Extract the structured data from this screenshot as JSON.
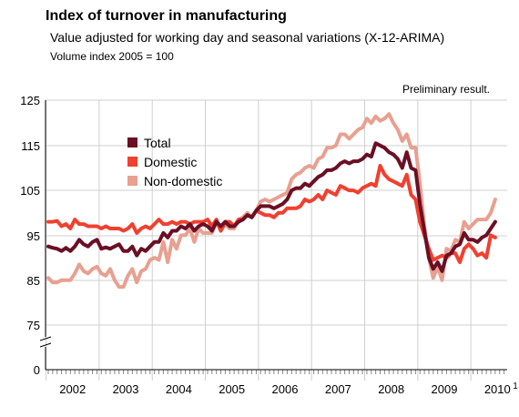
{
  "title": "Index of turnover in manufacturing",
  "subtitle": "Value adjusted for working day and seasonal variations (X-12-ARIMA)",
  "note": "Volume index 2005 = 100",
  "annotation": "Preliminary result.",
  "footnote_mark": "1",
  "chart_data": {
    "type": "line",
    "title": "Index of turnover in manufacturing",
    "ylim": [
      0,
      125
    ],
    "y_axis_break": [
      0,
      75
    ],
    "y_ticks": [
      0,
      75,
      85,
      95,
      105,
      115,
      125
    ],
    "y_tick_labels": [
      "0",
      "75",
      "85",
      "95",
      "105",
      "115",
      "125"
    ],
    "x_start": "2002-01",
    "x_end": "2010-05",
    "frequency": "monthly",
    "x_tick_labels": [
      "2002",
      "2003",
      "2004",
      "2005",
      "2006",
      "2007",
      "2008",
      "2009",
      "2010"
    ],
    "grid": true,
    "legend_position": "upper-left",
    "series": [
      {
        "name": "Total",
        "color": "#6b0f24",
        "values": [
          92.5,
          92.2,
          92.0,
          91.5,
          92.2,
          91.5,
          92.5,
          94.0,
          93.0,
          92.5,
          93.5,
          94.0,
          92.0,
          92.3,
          92.0,
          92.5,
          93.0,
          91.5,
          91.5,
          92.5,
          90.5,
          92.0,
          91.5,
          92.5,
          93.5,
          93.5,
          95.5,
          94.5,
          96.0,
          96.0,
          97.0,
          96.5,
          97.5,
          96.0,
          97.0,
          97.5,
          97.0,
          96.0,
          98.0,
          97.0,
          98.0,
          97.0,
          97.0,
          98.0,
          98.5,
          99.5,
          99.0,
          100.5,
          101.5,
          101.5,
          101.5,
          101.0,
          101.5,
          102.0,
          103.0,
          105.0,
          105.5,
          105.5,
          106.5,
          106.0,
          107.0,
          108.0,
          108.5,
          109.5,
          109.5,
          110.0,
          111.0,
          111.5,
          111.0,
          111.5,
          111.5,
          112.0,
          113.0,
          112.5,
          115.5,
          115.0,
          114.5,
          113.5,
          113.0,
          112.0,
          110.0,
          113.5,
          110.0,
          109.5,
          102.0,
          96.0,
          90.0,
          87.5,
          89.0,
          87.0,
          90.5,
          91.0,
          92.5,
          93.0,
          95.5,
          94.0,
          94.0,
          93.5,
          94.5,
          95.0,
          96.5,
          98.0
        ]
      },
      {
        "name": "Domestic",
        "color": "#f04030",
        "values": [
          98.0,
          98.0,
          98.2,
          97.0,
          97.5,
          96.5,
          98.5,
          97.5,
          97.5,
          97.0,
          97.0,
          97.0,
          96.5,
          97.0,
          96.5,
          96.5,
          96.5,
          96.0,
          96.5,
          97.5,
          95.5,
          96.5,
          97.0,
          96.5,
          97.5,
          98.5,
          97.5,
          97.5,
          98.0,
          97.5,
          98.0,
          98.0,
          97.5,
          98.0,
          98.0,
          98.0,
          98.5,
          97.0,
          98.5,
          96.0,
          98.0,
          98.0,
          97.0,
          98.5,
          98.5,
          99.5,
          99.0,
          100.5,
          100.0,
          99.5,
          99.5,
          99.0,
          100.0,
          100.0,
          101.0,
          101.0,
          101.0,
          101.5,
          103.0,
          102.5,
          103.0,
          104.0,
          103.0,
          105.0,
          104.5,
          104.0,
          106.0,
          105.5,
          105.0,
          105.0,
          104.5,
          105.5,
          106.0,
          106.5,
          106.0,
          110.5,
          108.5,
          107.5,
          107.0,
          106.5,
          106.0,
          108.5,
          104.0,
          103.0,
          98.0,
          95.0,
          92.0,
          89.5,
          90.0,
          90.5,
          90.0,
          91.0,
          91.0,
          89.0,
          92.0,
          93.0,
          92.0,
          90.5,
          91.0,
          90.0,
          95.0,
          94.5
        ]
      },
      {
        "name": "Non-domestic",
        "color": "#e8a090",
        "values": [
          85.5,
          84.5,
          84.5,
          85.0,
          85.0,
          85.0,
          86.5,
          88.5,
          87.0,
          86.5,
          87.5,
          88.0,
          86.5,
          86.0,
          87.5,
          85.0,
          83.5,
          83.5,
          86.0,
          87.5,
          84.5,
          87.0,
          87.5,
          89.5,
          90.0,
          89.5,
          93.5,
          89.0,
          94.0,
          92.0,
          95.0,
          95.0,
          96.5,
          93.5,
          96.5,
          95.5,
          95.5,
          95.5,
          98.0,
          96.0,
          97.5,
          96.5,
          96.5,
          98.5,
          99.0,
          100.0,
          99.0,
          100.5,
          102.5,
          103.0,
          102.5,
          103.0,
          103.5,
          104.0,
          104.5,
          107.5,
          108.5,
          109.0,
          110.0,
          110.5,
          110.0,
          112.0,
          112.5,
          114.5,
          114.5,
          115.0,
          117.5,
          117.5,
          116.5,
          117.5,
          118.5,
          119.0,
          121.0,
          120.0,
          121.5,
          120.5,
          121.0,
          122.0,
          120.0,
          118.5,
          116.0,
          117.5,
          114.5,
          114.5,
          106.5,
          97.0,
          90.0,
          85.5,
          88.0,
          85.0,
          92.0,
          91.5,
          94.0,
          93.5,
          98.0,
          96.5,
          97.5,
          98.5,
          98.5,
          98.5,
          100.0,
          103.0
        ]
      }
    ]
  }
}
